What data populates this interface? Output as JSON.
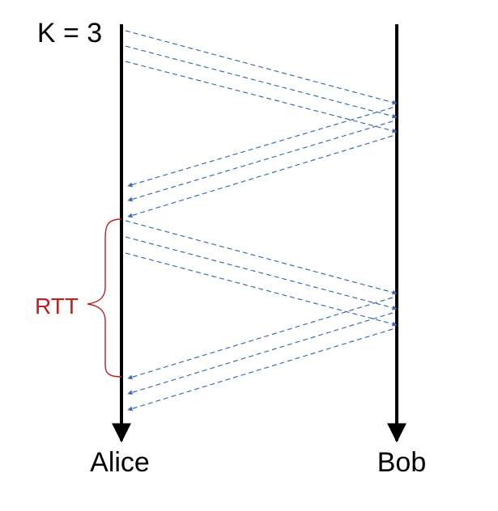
{
  "title": "K = 3",
  "participants": {
    "left": "Alice",
    "right": "Bob"
  },
  "interval_label": "RTT",
  "colors": {
    "timeline": "#000000",
    "message": "#3A6DB5",
    "interval": "#C02020",
    "text": "#000000"
  }
}
